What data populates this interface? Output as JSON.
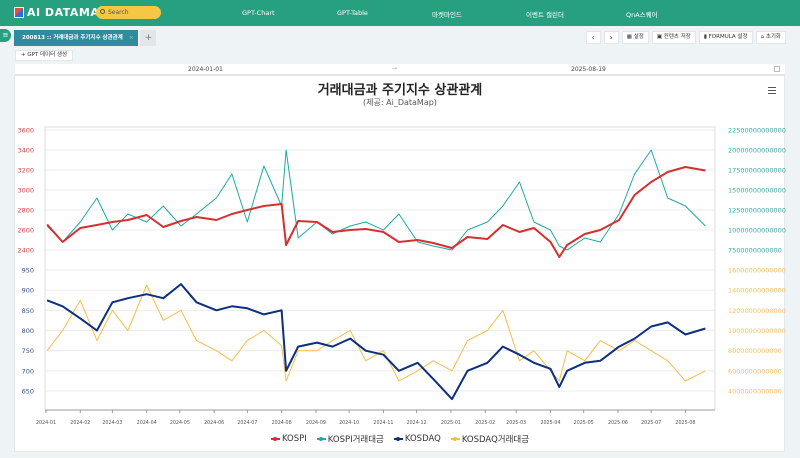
{
  "header": {
    "logo": "AI DATAMAP",
    "search_placeholder": "Search",
    "nav": [
      "GPT-Chart",
      "GPT-Table",
      "마켓마인드",
      "이벤트 캘린더",
      "QnA스퀘어"
    ]
  },
  "tabs": {
    "active": "200813 :: 거래대금과 주기지수 상관관계",
    "close": "×",
    "add": "+"
  },
  "toolbar": {
    "prev": "‹",
    "next": "›",
    "settings": "설정",
    "save": "컨텐츠 저장",
    "formula": "FORMULA 설정",
    "reset": "초기화"
  },
  "gpt_button": "+ GPT 데이터 생성",
  "date_range": {
    "start": "2024-01-01",
    "sep": "→",
    "end": "2025-08-19"
  },
  "colors": {
    "header": "#26a07f",
    "kospi": "#d62f2f",
    "kospi_vol": "#1fa9a4",
    "kosdaq": "#0c2f7e",
    "kosdaq_vol": "#f6bd4a"
  },
  "chart_data": {
    "type": "line",
    "title": "거래대금과 주기지수 상관관계",
    "subtitle": "(제공: Ai_DataMap)",
    "grid": true,
    "legend_position": "bottom",
    "x_ticks": [
      "2024-01",
      "2024-02",
      "2024-03",
      "2024-04",
      "2024-05",
      "2024-06",
      "2024-07",
      "2024-08",
      "2024-09",
      "2024-10",
      "2024-11",
      "2024-12",
      "2025-01",
      "2025-02",
      "2025-03",
      "2025-04",
      "2025-05",
      "2025-06",
      "2025-07",
      "2025-08"
    ],
    "x": [
      "2024-01-02",
      "2024-01-16",
      "2024-02-01",
      "2024-02-16",
      "2024-03-01",
      "2024-03-15",
      "2024-04-01",
      "2024-04-16",
      "2024-05-02",
      "2024-05-16",
      "2024-06-03",
      "2024-06-17",
      "2024-07-01",
      "2024-07-16",
      "2024-08-01",
      "2024-08-05",
      "2024-08-16",
      "2024-09-02",
      "2024-09-16",
      "2024-10-02",
      "2024-10-16",
      "2024-11-01",
      "2024-11-15",
      "2024-12-02",
      "2024-12-16",
      "2025-01-02",
      "2025-01-16",
      "2025-02-03",
      "2025-02-17",
      "2025-03-04",
      "2025-03-17",
      "2025-04-01",
      "2025-04-09",
      "2025-04-16",
      "2025-05-02",
      "2025-05-16",
      "2025-06-02",
      "2025-06-16",
      "2025-07-01",
      "2025-07-16",
      "2025-08-01",
      "2025-08-19"
    ],
    "panes": [
      {
        "left_axis": {
          "ticks": [
            3600,
            3400,
            3200,
            3000,
            2800,
            2600,
            2400
          ],
          "range": [
            2400,
            3600
          ]
        },
        "right_axis": {
          "ticks": [
            "22500000000000",
            "20000000000000",
            "17500000000000",
            "15000000000000",
            "12500000000000",
            "10000000000000",
            "7500000000000"
          ],
          "range": [
            7500000000000.0,
            22500000000000.0
          ]
        }
      },
      {
        "left_axis": {
          "ticks": [
            950,
            900,
            850,
            800,
            750,
            700,
            650
          ],
          "range": [
            650,
            950
          ]
        },
        "right_axis": {
          "ticks": [
            "16000000000000",
            "14000000000000",
            "12000000000000",
            "10000000000000",
            "8000000000000",
            "6000000000000",
            "4000000000000"
          ],
          "range": [
            4000000000000.0,
            16000000000000.0
          ]
        }
      }
    ],
    "series": [
      {
        "name": "KOSPI",
        "pane": 0,
        "axis": "left",
        "color": "#d62f2f",
        "values": [
          2655,
          2480,
          2620,
          2650,
          2680,
          2700,
          2750,
          2630,
          2690,
          2730,
          2700,
          2760,
          2800,
          2840,
          2860,
          2450,
          2690,
          2680,
          2580,
          2600,
          2610,
          2580,
          2480,
          2500,
          2470,
          2420,
          2530,
          2510,
          2650,
          2580,
          2620,
          2480,
          2330,
          2450,
          2560,
          2600,
          2700,
          2950,
          3080,
          3180,
          3230,
          3195
        ]
      },
      {
        "name": "KOSPI거래대금",
        "pane": 0,
        "axis": "right",
        "color": "#1fa9a4",
        "values": [
          10500000000000.0,
          8500000000000.0,
          11000000000000.0,
          14000000000000.0,
          10000000000000.0,
          12000000000000.0,
          11000000000000.0,
          13000000000000.0,
          10500000000000.0,
          12000000000000.0,
          14000000000000.0,
          17000000000000.0,
          11000000000000.0,
          18000000000000.0,
          13000000000000.0,
          20000000000000.0,
          9000000000000.0,
          11000000000000.0,
          9500000000000.0,
          10500000000000.0,
          11000000000000.0,
          10000000000000.0,
          12000000000000.0,
          8500000000000.0,
          8000000000000.0,
          7500000000000.0,
          10000000000000.0,
          11000000000000.0,
          13000000000000.0,
          16000000000000.0,
          11000000000000.0,
          10000000000000.0,
          8000000000000.0,
          7500000000000.0,
          9000000000000.0,
          8500000000000.0,
          12000000000000.0,
          17000000000000.0,
          20000000000000.0,
          14000000000000.0,
          13000000000000.0,
          10500000000000.0
        ]
      },
      {
        "name": "KOSDAQ",
        "pane": 1,
        "axis": "left",
        "color": "#0c2f7e",
        "values": [
          875,
          860,
          830,
          800,
          870,
          880,
          890,
          880,
          915,
          870,
          850,
          860,
          855,
          840,
          850,
          700,
          760,
          770,
          760,
          780,
          750,
          740,
          700,
          720,
          680,
          630,
          700,
          720,
          760,
          740,
          720,
          705,
          660,
          700,
          720,
          725,
          760,
          780,
          810,
          820,
          790,
          805
        ]
      },
      {
        "name": "KOSDAQ거래대금",
        "pane": 1,
        "axis": "right",
        "color": "#f6bd4a",
        "values": [
          8000000000000.0,
          10000000000000.0,
          13000000000000.0,
          9000000000000.0,
          12000000000000.0,
          10000000000000.0,
          14500000000000.0,
          11000000000000.0,
          12000000000000.0,
          9000000000000.0,
          8000000000000.0,
          7000000000000.0,
          9000000000000.0,
          10000000000000.0,
          8500000000000.0,
          5000000000000.0,
          8000000000000.0,
          8000000000000.0,
          9000000000000.0,
          10000000000000.0,
          7000000000000.0,
          8000000000000.0,
          5000000000000.0,
          6000000000000.0,
          7000000000000.0,
          6000000000000.0,
          9000000000000.0,
          10000000000000.0,
          12000000000000.0,
          7000000000000.0,
          8000000000000.0,
          6000000000000.0,
          5000000000000.0,
          8000000000000.0,
          7000000000000.0,
          9000000000000.0,
          8000000000000.0,
          9000000000000.0,
          8000000000000.0,
          7000000000000.0,
          5000000000000.0,
          6000000000000.0
        ]
      }
    ]
  }
}
